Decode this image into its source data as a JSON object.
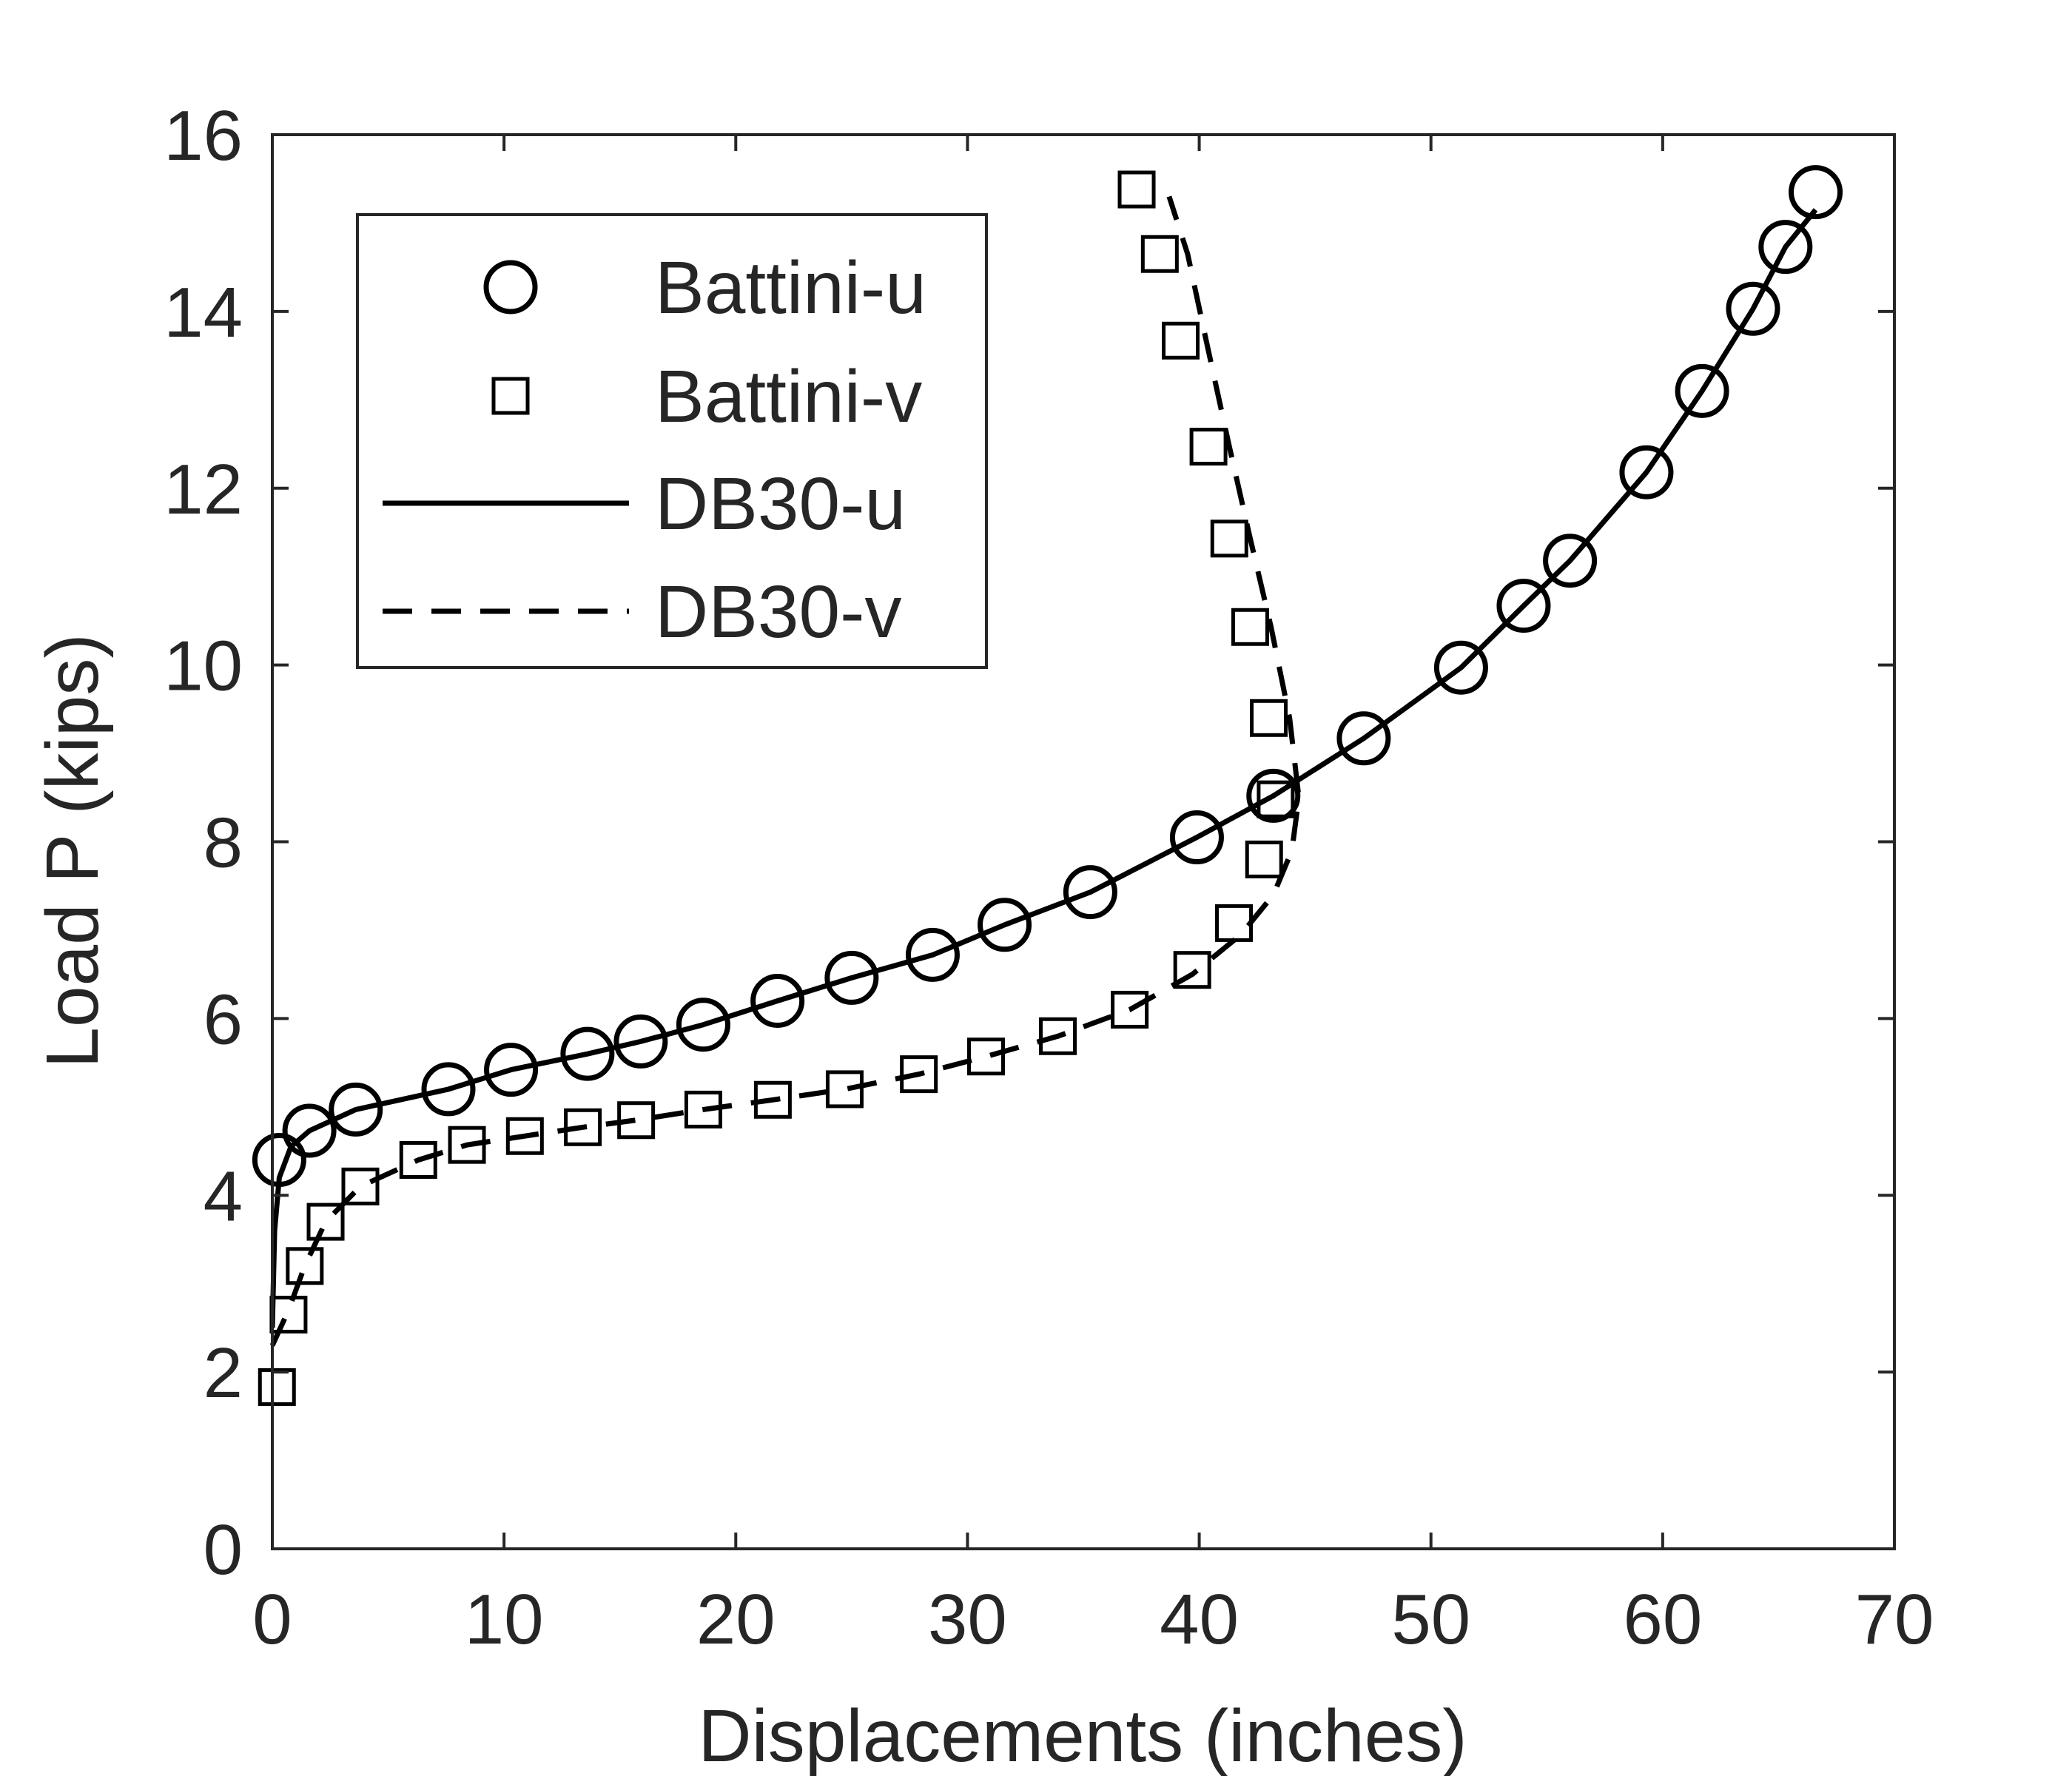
{
  "chart_data": {
    "type": "line",
    "title": "",
    "xlabel": "Displacements (inches)",
    "ylabel": "Load P (kips)",
    "xlim": [
      0,
      70
    ],
    "ylim": [
      0,
      16
    ],
    "xticks": [
      0,
      10,
      20,
      30,
      40,
      50,
      60,
      70
    ],
    "yticks": [
      0,
      2,
      4,
      6,
      8,
      10,
      12,
      14,
      16
    ],
    "grid": false,
    "legend_position": "top-left",
    "series": [
      {
        "name": "Battini-u",
        "style": "markers",
        "marker": "circle",
        "color": "#000000",
        "points": [
          [
            0.3,
            4.4
          ],
          [
            1.6,
            4.73
          ],
          [
            3.6,
            4.97
          ],
          [
            7.6,
            5.2
          ],
          [
            10.3,
            5.42
          ],
          [
            13.6,
            5.6
          ],
          [
            15.9,
            5.74
          ],
          [
            18.6,
            5.93
          ],
          [
            21.8,
            6.2
          ],
          [
            25.0,
            6.46
          ],
          [
            28.5,
            6.72
          ],
          [
            31.6,
            7.06
          ],
          [
            35.3,
            7.43
          ],
          [
            39.9,
            8.05
          ],
          [
            43.2,
            8.52
          ],
          [
            47.1,
            9.17
          ],
          [
            51.3,
            9.97
          ],
          [
            54.0,
            10.67
          ],
          [
            56.0,
            11.18
          ],
          [
            59.3,
            12.18
          ],
          [
            61.7,
            13.1
          ],
          [
            63.9,
            14.03
          ],
          [
            65.3,
            14.73
          ],
          [
            66.6,
            15.35
          ]
        ]
      },
      {
        "name": "Battini-v",
        "style": "markers",
        "marker": "square",
        "color": "#000000",
        "points": [
          [
            0.2,
            1.83
          ],
          [
            0.7,
            2.65
          ],
          [
            1.4,
            3.2
          ],
          [
            2.3,
            3.7
          ],
          [
            3.8,
            4.1
          ],
          [
            6.3,
            4.4
          ],
          [
            8.4,
            4.57
          ],
          [
            10.9,
            4.67
          ],
          [
            13.4,
            4.77
          ],
          [
            15.7,
            4.85
          ],
          [
            18.6,
            4.97
          ],
          [
            21.6,
            5.08
          ],
          [
            24.7,
            5.2
          ],
          [
            27.9,
            5.37
          ],
          [
            30.8,
            5.57
          ],
          [
            33.9,
            5.8
          ],
          [
            37.0,
            6.1
          ],
          [
            39.7,
            6.55
          ],
          [
            41.5,
            7.08
          ],
          [
            42.8,
            7.8
          ],
          [
            43.3,
            8.48
          ],
          [
            43.0,
            9.4
          ],
          [
            42.2,
            10.43
          ],
          [
            41.3,
            11.43
          ],
          [
            40.4,
            12.47
          ],
          [
            39.2,
            13.67
          ],
          [
            38.3,
            14.65
          ],
          [
            37.3,
            15.38
          ]
        ]
      },
      {
        "name": "DB30-u",
        "style": "solid",
        "color": "#000000",
        "points": [
          [
            0.0,
            2.5
          ],
          [
            0.1,
            3.6
          ],
          [
            0.3,
            4.2
          ],
          [
            0.8,
            4.55
          ],
          [
            1.6,
            4.73
          ],
          [
            3.6,
            4.97
          ],
          [
            7.6,
            5.2
          ],
          [
            10.3,
            5.42
          ],
          [
            13.6,
            5.6
          ],
          [
            15.9,
            5.74
          ],
          [
            18.6,
            5.93
          ],
          [
            21.8,
            6.2
          ],
          [
            25.0,
            6.46
          ],
          [
            28.5,
            6.72
          ],
          [
            31.6,
            7.06
          ],
          [
            35.3,
            7.43
          ],
          [
            39.9,
            8.05
          ],
          [
            43.2,
            8.52
          ],
          [
            47.1,
            9.17
          ],
          [
            51.3,
            9.97
          ],
          [
            54.0,
            10.67
          ],
          [
            56.0,
            11.18
          ],
          [
            59.3,
            12.18
          ],
          [
            61.7,
            13.1
          ],
          [
            63.9,
            14.03
          ],
          [
            65.3,
            14.73
          ],
          [
            66.6,
            15.15
          ]
        ]
      },
      {
        "name": "DB30-v",
        "style": "dashed",
        "color": "#000000",
        "points": [
          [
            0.0,
            2.3
          ],
          [
            0.7,
            2.7
          ],
          [
            1.4,
            3.2
          ],
          [
            2.3,
            3.7
          ],
          [
            3.8,
            4.1
          ],
          [
            6.3,
            4.4
          ],
          [
            8.4,
            4.57
          ],
          [
            10.9,
            4.67
          ],
          [
            13.4,
            4.77
          ],
          [
            15.7,
            4.85
          ],
          [
            18.6,
            4.97
          ],
          [
            21.6,
            5.08
          ],
          [
            24.7,
            5.2
          ],
          [
            27.9,
            5.37
          ],
          [
            30.8,
            5.57
          ],
          [
            33.9,
            5.8
          ],
          [
            37.0,
            6.1
          ],
          [
            39.7,
            6.5
          ],
          [
            41.8,
            6.95
          ],
          [
            43.2,
            7.4
          ],
          [
            44.0,
            7.9
          ],
          [
            44.3,
            8.5
          ],
          [
            43.9,
            9.4
          ],
          [
            43.1,
            10.43
          ],
          [
            42.2,
            11.43
          ],
          [
            41.3,
            12.47
          ],
          [
            40.3,
            13.67
          ],
          [
            39.5,
            14.65
          ],
          [
            38.7,
            15.3
          ]
        ]
      }
    ]
  }
}
